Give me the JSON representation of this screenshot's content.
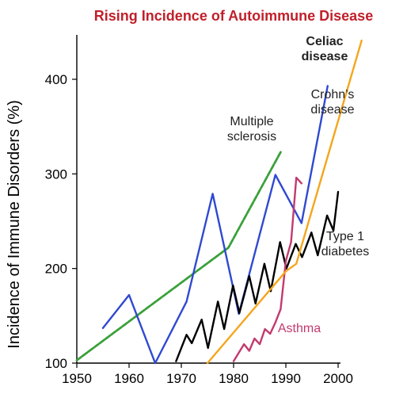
{
  "chart_data": {
    "type": "line",
    "title": "Rising Incidence of Autoimmune Disease",
    "xlabel": "",
    "ylabel": "Incidence of Immune Disorders (%)",
    "xlim": [
      1950,
      2000
    ],
    "ylim": [
      100,
      400
    ],
    "xticks": [
      "1950",
      "1960",
      "1970",
      "1980",
      "1990",
      "2000"
    ],
    "yticks": [
      "100",
      "200",
      "300",
      "400"
    ],
    "grid": false,
    "colors": {
      "title": "#c0202a",
      "multiple_sclerosis": "#3aa03a",
      "crohns": "#2f49d1",
      "type1": "#000000",
      "asthma": "#c23a6e",
      "celiac": "#f5a51c"
    },
    "series": [
      {
        "name": "Multiple sclerosis",
        "label_lines": [
          "Multiple",
          "sclerosis"
        ],
        "color_key": "multiple_sclerosis",
        "dashed": true,
        "x": [
          1950,
          1979,
          1989
        ],
        "y": [
          103,
          222,
          323
        ]
      },
      {
        "name": "Crohn's disease",
        "label_lines": [
          "Crohn’s",
          "disease"
        ],
        "color_key": "crohns",
        "x": [
          1955,
          1960,
          1965,
          1971,
          1976,
          1981,
          1988,
          1993,
          1998
        ],
        "y": [
          137,
          172,
          100,
          165,
          279,
          152,
          299,
          248,
          393
        ]
      },
      {
        "name": "Type 1 diabetes",
        "label_lines": [
          "Type 1",
          "diabetes"
        ],
        "color_key": "type1",
        "x": [
          1969,
          1971,
          1972,
          1973.9,
          1975.1,
          1977,
          1978.2,
          1979.9,
          1981.1,
          1983,
          1984.2,
          1985.9,
          1987.1,
          1988.9,
          1990.1,
          1991.9,
          1993.1,
          1994.9,
          1996.1,
          1997.9,
          1999.1,
          2000
        ],
        "y": [
          102,
          130,
          121,
          146,
          116,
          165,
          136,
          182,
          153,
          192,
          163,
          205,
          176,
          228,
          200,
          226,
          212,
          238,
          214,
          256,
          240,
          281
        ]
      },
      {
        "name": "Asthma",
        "label_lines": [
          "Asthma"
        ],
        "color_key": "asthma",
        "x": [
          1980,
          1982,
          1983,
          1984,
          1985,
          1986,
          1987,
          1988,
          1989,
          1990,
          1991,
          1992,
          1993
        ],
        "y": [
          102,
          120,
          113,
          126,
          120,
          136,
          131,
          143,
          157,
          208,
          228,
          296,
          290
        ]
      },
      {
        "name": "Celiac disease",
        "label_lines": [
          "Celiac",
          "disease"
        ],
        "color_key": "celiac",
        "x": [
          1975,
          1990,
          1992,
          2004.5
        ],
        "y": [
          100,
          197,
          205,
          441
        ]
      }
    ]
  }
}
